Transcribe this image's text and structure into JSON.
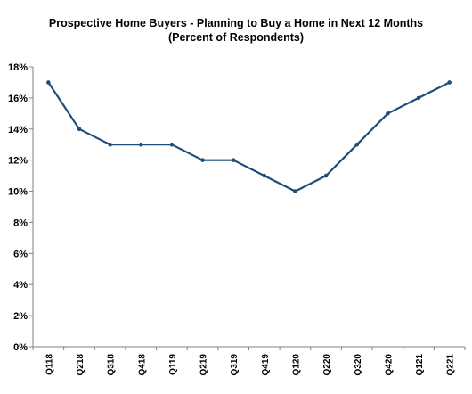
{
  "chart_data": {
    "type": "line",
    "title": "Prospective Home Buyers  - Planning to Buy a Home in Next 12 Months",
    "subtitle": "(Percent of Respondents)",
    "xlabel": "",
    "ylabel": "",
    "categories": [
      "Q118",
      "Q218",
      "Q318",
      "Q418",
      "Q119",
      "Q219",
      "Q319",
      "Q419",
      "Q120",
      "Q220",
      "Q320",
      "Q420",
      "Q121",
      "Q221"
    ],
    "series": [
      {
        "values": [
          17,
          14,
          13,
          13,
          13,
          12,
          12,
          11,
          10,
          11,
          13,
          15,
          16,
          17
        ]
      }
    ],
    "ylim": [
      0,
      18
    ],
    "yticks": [
      "0%",
      "2%",
      "4%",
      "6%",
      "8%",
      "10%",
      "12%",
      "14%",
      "16%",
      "18%"
    ],
    "ytick_values": [
      0,
      2,
      4,
      6,
      8,
      10,
      12,
      14,
      16,
      18
    ],
    "grid": false,
    "legend": "none",
    "line_color": "#1f4e79"
  }
}
